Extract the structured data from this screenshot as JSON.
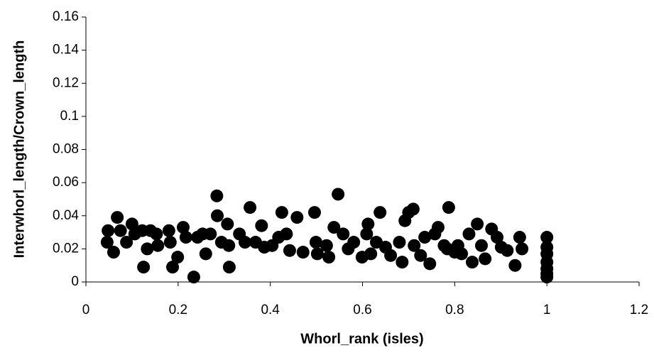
{
  "chart_data": {
    "type": "scatter",
    "x_label": "Whorl_rank (isles)",
    "y_label": "Interwhorl_length/Crown_length",
    "xlim": [
      0,
      1.2
    ],
    "xticks": [
      0,
      0.2,
      0.4,
      0.6,
      0.8,
      1,
      1.2
    ],
    "ylim": [
      0,
      0.16
    ],
    "yticks": [
      0,
      0.02,
      0.04,
      0.06,
      0.08,
      0.1,
      0.12,
      0.14,
      0.16
    ],
    "color": "#000000",
    "x": [
      0.048,
      0.046,
      0.06,
      0.068,
      0.075,
      0.088,
      0.1,
      0.106,
      0.122,
      0.125,
      0.133,
      0.14,
      0.153,
      0.156,
      0.18,
      0.183,
      0.188,
      0.199,
      0.211,
      0.217,
      0.234,
      0.242,
      0.253,
      0.26,
      0.27,
      0.284,
      0.285,
      0.294,
      0.307,
      0.311,
      0.31,
      0.333,
      0.345,
      0.356,
      0.368,
      0.381,
      0.387,
      0.404,
      0.418,
      0.425,
      0.435,
      0.442,
      0.458,
      0.471,
      0.496,
      0.499,
      0.502,
      0.522,
      0.527,
      0.538,
      0.547,
      0.558,
      0.569,
      0.581,
      0.599,
      0.609,
      0.612,
      0.618,
      0.63,
      0.638,
      0.65,
      0.661,
      0.68,
      0.686,
      0.692,
      0.7,
      0.71,
      0.712,
      0.726,
      0.735,
      0.746,
      0.757,
      0.764,
      0.777,
      0.784,
      0.787,
      0.8,
      0.807,
      0.815,
      0.831,
      0.838,
      0.849,
      0.858,
      0.866,
      0.88,
      0.892,
      0.901,
      0.914,
      0.931,
      0.941,
      0.946,
      1,
      1,
      1,
      1,
      1,
      1,
      1
    ],
    "y": [
      0.031,
      0.024,
      0.018,
      0.039,
      0.031,
      0.024,
      0.035,
      0.029,
      0.031,
      0.009,
      0.02,
      0.031,
      0.029,
      0.022,
      0.031,
      0.024,
      0.009,
      0.015,
      0.033,
      0.027,
      0.003,
      0.027,
      0.029,
      0.017,
      0.029,
      0.052,
      0.04,
      0.024,
      0.035,
      0.009,
      0.022,
      0.029,
      0.024,
      0.045,
      0.024,
      0.034,
      0.021,
      0.022,
      0.027,
      0.042,
      0.029,
      0.019,
      0.039,
      0.018,
      0.042,
      0.024,
      0.017,
      0.022,
      0.015,
      0.033,
      0.053,
      0.029,
      0.02,
      0.024,
      0.015,
      0.029,
      0.035,
      0.017,
      0.024,
      0.042,
      0.021,
      0.016,
      0.024,
      0.012,
      0.037,
      0.042,
      0.044,
      0.022,
      0.016,
      0.027,
      0.011,
      0.029,
      0.033,
      0.022,
      0.02,
      0.045,
      0.018,
      0.022,
      0.017,
      0.029,
      0.012,
      0.035,
      0.022,
      0.014,
      0.032,
      0.027,
      0.021,
      0.019,
      0.01,
      0.027,
      0.02,
      0.027,
      0.021,
      0.017,
      0.012,
      0.008,
      0.005,
      0.003
    ]
  }
}
